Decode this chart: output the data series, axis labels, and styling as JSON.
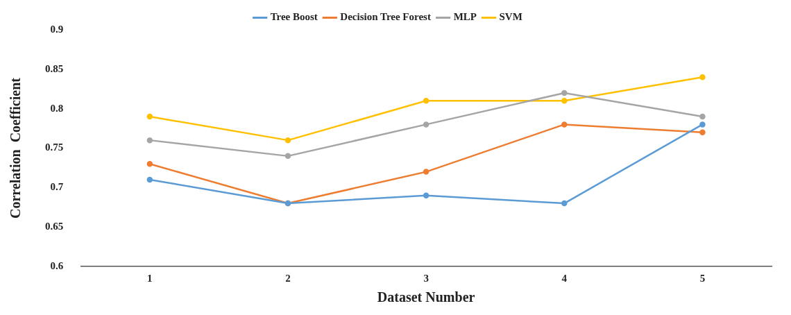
{
  "chart_data": {
    "type": "line",
    "xlabel": "Dataset Number",
    "ylabel": "Correlation  Coefficient",
    "categories": [
      "1",
      "2",
      "3",
      "4",
      "5"
    ],
    "series": [
      {
        "name": "Tree Boost",
        "color": "#5b9bd5",
        "values": [
          0.71,
          0.68,
          0.69,
          0.68,
          0.78
        ]
      },
      {
        "name": "Decision Tree Forest",
        "color": "#ed7d31",
        "values": [
          0.73,
          0.68,
          0.72,
          0.78,
          0.77
        ]
      },
      {
        "name": "MLP",
        "color": "#a5a5a5",
        "values": [
          0.76,
          0.74,
          0.78,
          0.82,
          0.79
        ]
      },
      {
        "name": "SVM",
        "color": "#ffc000",
        "values": [
          0.79,
          0.76,
          0.81,
          0.81,
          0.84
        ]
      }
    ],
    "ylim": [
      0.6,
      0.9
    ],
    "yticks": [
      0.6,
      0.65,
      0.7,
      0.75,
      0.8,
      0.85,
      0.9
    ],
    "grid": false,
    "legend": "top",
    "marker": "circle",
    "line_style": "solid"
  }
}
